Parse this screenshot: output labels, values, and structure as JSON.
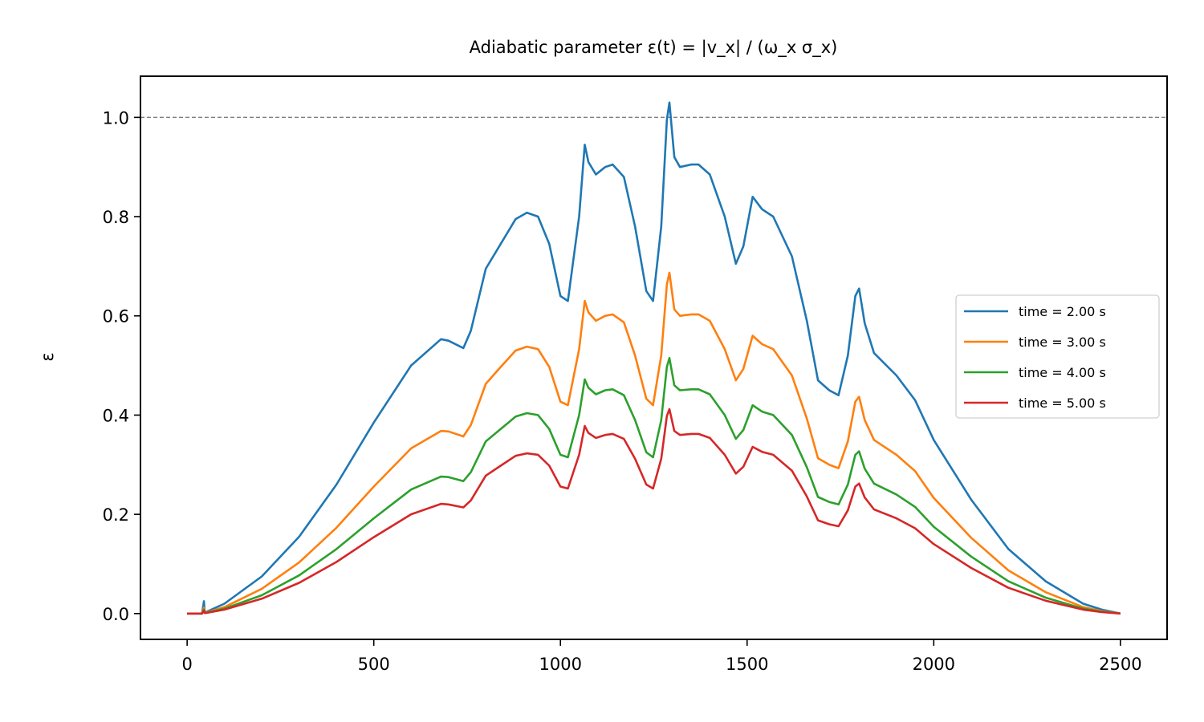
{
  "chart_data": {
    "type": "line",
    "title": "Adiabatic parameter ε(t) = |v_x| / (ω_x σ_x)",
    "xlabel": "",
    "ylabel": "ε",
    "xlim": [
      -125,
      2625
    ],
    "ylim": [
      -0.052,
      1.083
    ],
    "xticks": [
      0,
      500,
      1000,
      1500,
      2000,
      2500
    ],
    "yticks": [
      0.0,
      0.2,
      0.4,
      0.6,
      0.8,
      1.0
    ],
    "ytick_labels": [
      "0.0",
      "0.2",
      "0.4",
      "0.6",
      "0.8",
      "1.0"
    ],
    "reference_line": {
      "y": 1.0,
      "style": "dashed",
      "color": "#808080"
    },
    "legend_position": "center-right",
    "grid": false,
    "series": [
      {
        "name": "time = 2.00 s",
        "color": "#1f77b4",
        "x": [
          0,
          40,
          45,
          47,
          50,
          100,
          200,
          300,
          400,
          500,
          600,
          680,
          700,
          740,
          760,
          800,
          840,
          880,
          910,
          940,
          970,
          1000,
          1020,
          1050,
          1065,
          1075,
          1095,
          1120,
          1140,
          1170,
          1200,
          1230,
          1248,
          1270,
          1285,
          1292,
          1305,
          1320,
          1350,
          1370,
          1400,
          1440,
          1470,
          1490,
          1515,
          1540,
          1570,
          1620,
          1660,
          1690,
          1720,
          1745,
          1770,
          1790,
          1800,
          1815,
          1840,
          1900,
          1950,
          2000,
          2100,
          2200,
          2300,
          2400,
          2450,
          2500
        ],
        "y": [
          0.0,
          0.0,
          0.025,
          0.003,
          0.003,
          0.02,
          0.075,
          0.155,
          0.26,
          0.385,
          0.5,
          0.553,
          0.55,
          0.535,
          0.57,
          0.695,
          0.745,
          0.795,
          0.808,
          0.8,
          0.745,
          0.64,
          0.63,
          0.8,
          0.945,
          0.91,
          0.885,
          0.9,
          0.905,
          0.88,
          0.78,
          0.65,
          0.63,
          0.78,
          0.995,
          1.03,
          0.92,
          0.9,
          0.905,
          0.905,
          0.885,
          0.8,
          0.705,
          0.74,
          0.84,
          0.815,
          0.8,
          0.72,
          0.59,
          0.47,
          0.45,
          0.44,
          0.52,
          0.64,
          0.655,
          0.585,
          0.525,
          0.48,
          0.43,
          0.35,
          0.23,
          0.13,
          0.065,
          0.02,
          0.008,
          0.0
        ]
      },
      {
        "name": "time = 3.00 s",
        "color": "#ff7f0e",
        "x": [
          0,
          40,
          45,
          47,
          50,
          100,
          200,
          300,
          400,
          500,
          600,
          680,
          700,
          740,
          760,
          800,
          840,
          880,
          910,
          940,
          970,
          1000,
          1020,
          1050,
          1065,
          1075,
          1095,
          1120,
          1140,
          1170,
          1200,
          1230,
          1248,
          1270,
          1285,
          1292,
          1305,
          1320,
          1350,
          1370,
          1400,
          1440,
          1470,
          1490,
          1515,
          1540,
          1570,
          1620,
          1660,
          1690,
          1720,
          1745,
          1770,
          1790,
          1800,
          1815,
          1840,
          1900,
          1950,
          2000,
          2100,
          2200,
          2300,
          2400,
          2450,
          2500
        ],
        "y": [
          0.0,
          0.0,
          0.012,
          0.002,
          0.002,
          0.013,
          0.05,
          0.103,
          0.173,
          0.256,
          0.333,
          0.368,
          0.367,
          0.357,
          0.38,
          0.463,
          0.497,
          0.53,
          0.538,
          0.533,
          0.497,
          0.427,
          0.42,
          0.533,
          0.63,
          0.607,
          0.59,
          0.6,
          0.603,
          0.587,
          0.52,
          0.433,
          0.42,
          0.52,
          0.663,
          0.687,
          0.613,
          0.6,
          0.603,
          0.603,
          0.59,
          0.533,
          0.47,
          0.493,
          0.56,
          0.543,
          0.533,
          0.48,
          0.393,
          0.313,
          0.3,
          0.293,
          0.347,
          0.427,
          0.437,
          0.39,
          0.35,
          0.32,
          0.287,
          0.233,
          0.153,
          0.087,
          0.043,
          0.013,
          0.005,
          0.0
        ]
      },
      {
        "name": "time = 4.00 s",
        "color": "#2ca02c",
        "x": [
          0,
          40,
          45,
          47,
          50,
          100,
          200,
          300,
          400,
          500,
          600,
          680,
          700,
          740,
          760,
          800,
          840,
          880,
          910,
          940,
          970,
          1000,
          1020,
          1050,
          1065,
          1075,
          1095,
          1120,
          1140,
          1170,
          1200,
          1230,
          1248,
          1270,
          1285,
          1292,
          1305,
          1320,
          1350,
          1370,
          1400,
          1440,
          1470,
          1490,
          1515,
          1540,
          1570,
          1620,
          1660,
          1690,
          1720,
          1745,
          1770,
          1790,
          1800,
          1815,
          1840,
          1900,
          1950,
          2000,
          2100,
          2200,
          2300,
          2400,
          2450,
          2500
        ],
        "y": [
          0.0,
          0.0,
          0.008,
          0.0015,
          0.0015,
          0.01,
          0.037,
          0.077,
          0.13,
          0.192,
          0.25,
          0.276,
          0.275,
          0.267,
          0.285,
          0.347,
          0.372,
          0.397,
          0.404,
          0.4,
          0.372,
          0.32,
          0.315,
          0.4,
          0.472,
          0.455,
          0.442,
          0.45,
          0.452,
          0.44,
          0.39,
          0.325,
          0.315,
          0.39,
          0.497,
          0.515,
          0.46,
          0.45,
          0.452,
          0.452,
          0.442,
          0.4,
          0.352,
          0.37,
          0.42,
          0.407,
          0.4,
          0.36,
          0.295,
          0.235,
          0.225,
          0.22,
          0.26,
          0.32,
          0.327,
          0.292,
          0.262,
          0.24,
          0.215,
          0.175,
          0.115,
          0.065,
          0.032,
          0.01,
          0.004,
          0.0
        ]
      },
      {
        "name": "time = 5.00 s",
        "color": "#d62728",
        "x": [
          0,
          40,
          45,
          47,
          50,
          100,
          200,
          300,
          400,
          500,
          600,
          680,
          700,
          740,
          760,
          800,
          840,
          880,
          910,
          940,
          970,
          1000,
          1020,
          1050,
          1065,
          1075,
          1095,
          1120,
          1140,
          1170,
          1200,
          1230,
          1248,
          1270,
          1285,
          1292,
          1305,
          1320,
          1350,
          1370,
          1400,
          1440,
          1470,
          1490,
          1515,
          1540,
          1570,
          1620,
          1660,
          1690,
          1720,
          1745,
          1770,
          1790,
          1800,
          1815,
          1840,
          1900,
          1950,
          2000,
          2100,
          2200,
          2300,
          2400,
          2450,
          2500
        ],
        "y": [
          0.0,
          0.0,
          0.006,
          0.0012,
          0.0012,
          0.008,
          0.03,
          0.062,
          0.104,
          0.154,
          0.2,
          0.221,
          0.22,
          0.214,
          0.228,
          0.278,
          0.298,
          0.318,
          0.323,
          0.32,
          0.298,
          0.256,
          0.252,
          0.32,
          0.378,
          0.364,
          0.354,
          0.36,
          0.362,
          0.352,
          0.312,
          0.26,
          0.252,
          0.312,
          0.398,
          0.412,
          0.368,
          0.36,
          0.362,
          0.362,
          0.354,
          0.32,
          0.282,
          0.296,
          0.336,
          0.326,
          0.32,
          0.288,
          0.236,
          0.188,
          0.18,
          0.176,
          0.208,
          0.256,
          0.262,
          0.234,
          0.21,
          0.192,
          0.172,
          0.14,
          0.092,
          0.052,
          0.026,
          0.008,
          0.003,
          0.0
        ]
      }
    ]
  }
}
